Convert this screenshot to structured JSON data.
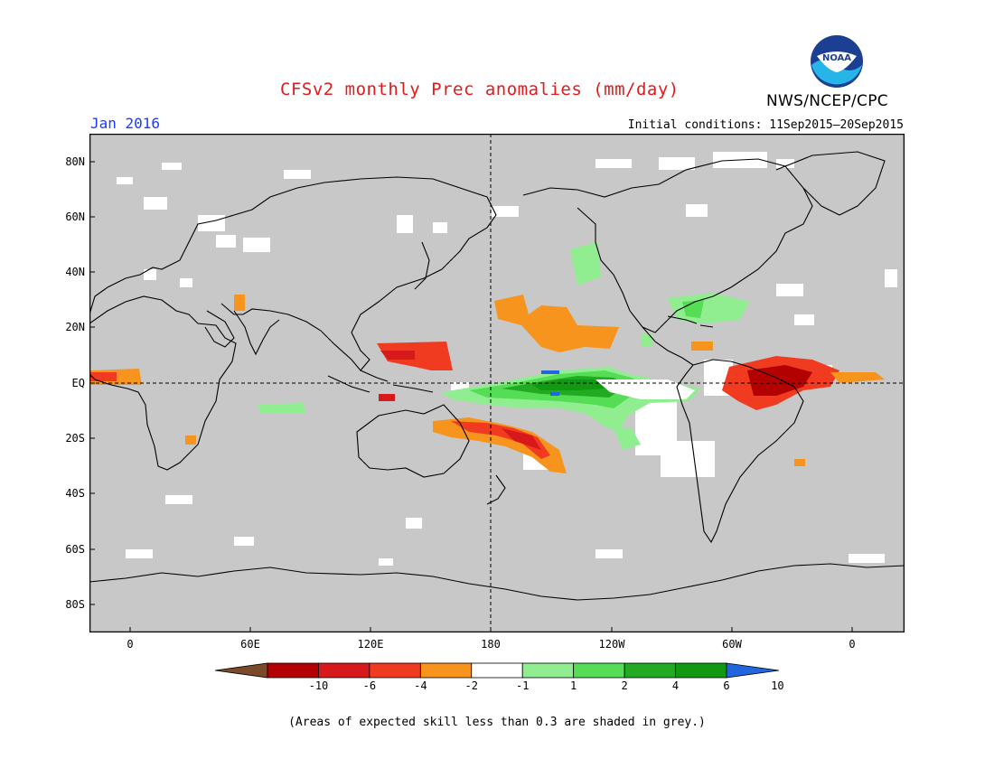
{
  "title": "CFSv2 monthly Prec anomalies (mm/day)",
  "month": "Jan 2016",
  "initial_conditions": "Initial conditions: 11Sep2015–20Sep2015",
  "agency": "NWS/NCEP/CPC",
  "logo_text": "NOAA",
  "footnote": "(Areas of expected skill less than 0.3 are shaded in grey.)",
  "y_axis": [
    "80N",
    "60N",
    "40N",
    "20N",
    "EQ",
    "20S",
    "40S",
    "60S",
    "80S"
  ],
  "x_axis": [
    "0",
    "60E",
    "120E",
    "180",
    "120W",
    "60W",
    "0"
  ],
  "colorbar": {
    "labels": [
      "-10",
      "-6",
      "-4",
      "-2",
      "-1",
      "1",
      "2",
      "4",
      "6",
      "10"
    ],
    "colors": [
      "#7a4a2a",
      "#b30000",
      "#d7191c",
      "#f03b20",
      "#f7941d",
      "#ffffff",
      "#90ee90",
      "#55dd55",
      "#22aa22",
      "#119911",
      "#2266dd"
    ]
  },
  "colors": {
    "grey": "#c8c8c8",
    "title": "#e31a1c",
    "month": "#1a3cff"
  }
}
